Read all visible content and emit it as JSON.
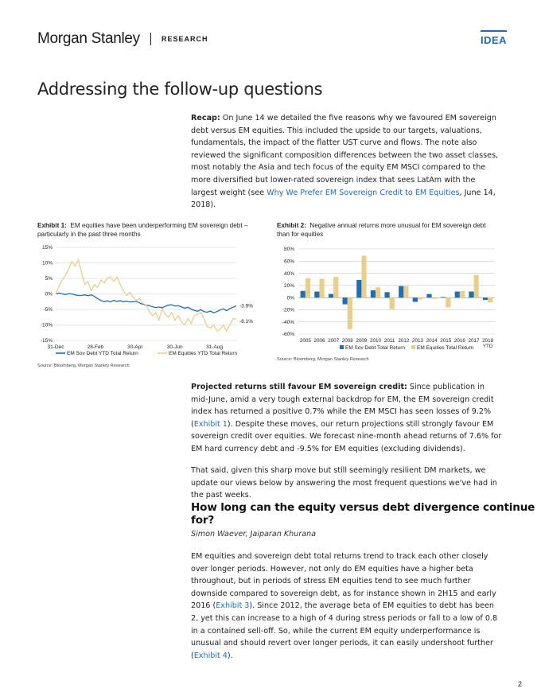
{
  "header": {
    "logo": "Morgan Stanley",
    "section": "RESEARCH",
    "tag": "IDEA"
  },
  "page_title": "Addressing the follow-up questions",
  "recap": {
    "lead": "Recap:",
    "text_before_link": " On June 14 we detailed the five reasons why we favoured EM sovereign debt versus EM equities. This included the upside to our targets, valuations, fundamentals, the impact of the flatter UST curve and flows. The note also reviewed the significant composition differences between the two asset classes, most notably the Asia and tech focus of the equity EM MSCI compared to the more diversified but lower-rated sovereign index that sees LatAm with the largest weight (see ",
    "link": "Why We Prefer EM Sovereign Credit to EM Equities",
    "text_after_link": ", June 14, 2018)."
  },
  "exhibit1": {
    "label": "Exhibit 1:",
    "title": "EM equities have been underperforming EM sovereign debt – particularly in the past three months",
    "source": "Source: Bloomberg, Morgan Stanley Research"
  },
  "exhibit2": {
    "label": "Exhibit 2:",
    "title": "Negative annual returns more unusual for EM sovereign debt than for equities",
    "source": "Source: Bloomberg, Morgan Stanley Research"
  },
  "chart_data": [
    {
      "type": "line",
      "title": "",
      "ylim": [
        -15,
        15
      ],
      "y_ticks": [
        "15%",
        "10%",
        "5%",
        "0%",
        "-5%",
        "-10%",
        "-15%"
      ],
      "y_tick_values": [
        15,
        10,
        5,
        0,
        -5,
        -10,
        -15
      ],
      "x_ticks": [
        "31-Dec",
        "28-Feb",
        "30-Apr",
        "30-Jun",
        "31-Aug"
      ],
      "end_labels": [
        "-3.9%",
        "-8.1%"
      ],
      "grid": true,
      "legend": "bottom",
      "colors": {
        "debt": "#1f6fb2",
        "equity": "#e8cf8c"
      },
      "series": [
        {
          "name": "EM Sov Debt YTD Total Return",
          "values": [
            0,
            0.3,
            0,
            -0.2,
            0.1,
            0,
            -0.3,
            -0.5,
            -0.5,
            -0.3,
            -0.6,
            -0.3,
            -0.8,
            -1.5,
            -2.1,
            -2.5,
            -2.2,
            -2.6,
            -2.1,
            -2.4,
            -2.2,
            -2.5,
            -2.3,
            -2.6,
            -2.5,
            -2.4,
            -2.9,
            -3.3,
            -3.6,
            -3.8,
            -4.1,
            -4.4,
            -4.2,
            -4.5,
            -4.0,
            -3.6,
            -3.5,
            -3.9,
            -3.8,
            -4.2,
            -4.6,
            -4.3,
            -4.9,
            -5.3,
            -5.6,
            -5.1,
            -5.7,
            -5.9,
            -5.5,
            -6.1,
            -5.7,
            -5.2,
            -4.8,
            -5.4,
            -4.7,
            -4.3,
            -3.9
          ]
        },
        {
          "name": "EM Equities YTD Total Return",
          "values": [
            0,
            2.5,
            4.5,
            6,
            8,
            10.5,
            9,
            11,
            7,
            3,
            4,
            1,
            3,
            2,
            4.5,
            3.5,
            5,
            5.5,
            4,
            5.5,
            3,
            1,
            -0.5,
            0.5,
            -1,
            -2,
            -1.5,
            -3,
            -3.5,
            -5.5,
            -7,
            -6,
            -8.5,
            -5,
            -6.5,
            -7.5,
            -6,
            -8.5,
            -7,
            -9,
            -10,
            -8,
            -9.5,
            -7,
            -6.5,
            -6,
            -8,
            -10.5,
            -11,
            -10,
            -12,
            -11.5,
            -10,
            -12,
            -10,
            -8,
            -8.1
          ]
        }
      ]
    },
    {
      "type": "bar",
      "title": "",
      "ylim": [
        -60,
        80
      ],
      "y_ticks": [
        "80%",
        "60%",
        "40%",
        "20%",
        "0%",
        "-20%",
        "-40%",
        "-60%"
      ],
      "y_tick_values": [
        80,
        60,
        40,
        20,
        0,
        -20,
        -40,
        -60
      ],
      "categories": [
        "2005",
        "2006",
        "2007",
        "2008",
        "2009",
        "2010",
        "2011",
        "2012",
        "2013",
        "2014",
        "2015",
        "2016",
        "2017",
        "2018 YTD"
      ],
      "grid": true,
      "legend": "bottom",
      "colors": {
        "debt": "#1f6fb2",
        "equity": "#e8cf8c"
      },
      "series": [
        {
          "name": "EM Sov Debt Total Return",
          "values": [
            11,
            10,
            6,
            -11,
            29,
            12,
            9,
            19,
            -7,
            6,
            1,
            10,
            10,
            -3.9
          ]
        },
        {
          "name": "EM Equities Total Return",
          "values": [
            32,
            31,
            34,
            -52,
            69,
            17,
            -19,
            19,
            -3,
            -2,
            -16,
            11,
            37,
            -8.1
          ]
        }
      ]
    }
  ],
  "projected": {
    "lead": "Projected returns still favour EM sovereign credit:",
    "text1": " Since publication in mid-June, amid a very tough external backdrop for EM, the EM sovereign credit index has returned a positive 0.7% while the EM MSCI has seen losses of 9.2% (",
    "link": "Exhibit 1",
    "text2": "). Despite these moves, our return projections still strongly favour EM sovereign credit over equities. We forecast nine-month ahead returns of 7.6% for EM hard currency debt and -9.5% for EM equities (excluding dividends)."
  },
  "that_said": "That said, given this sharp move but still seemingly resilient DM markets, we update our views below by answering the most frequent questions we've had in the past weeks.",
  "section_heading": "How long can the equity versus debt divergence continue for?",
  "authors": "Simon Waever, Jaiparan Khurana",
  "final": {
    "text1": "EM equities and sovereign debt total returns trend to track each other closely over longer periods. However, not only do EM equities have a higher beta throughout, but in periods of stress EM equities tend to see much further downside compared to sovereign debt, as for instance shown in 2H15 and early 2016 (",
    "link1": "Exhibit 3",
    "text2": "). Since 2012, the average beta of EM equities to debt has been 2, yet this can increase to a high of 4 during stress periods or fall to a low of 0.8 in a contained sell-off. So, while the current EM equity underperformance is unusual and should revert over longer periods, it can easily undershoot further (",
    "link2": "Exhibit 4",
    "text3": ")."
  },
  "page_number": "2"
}
